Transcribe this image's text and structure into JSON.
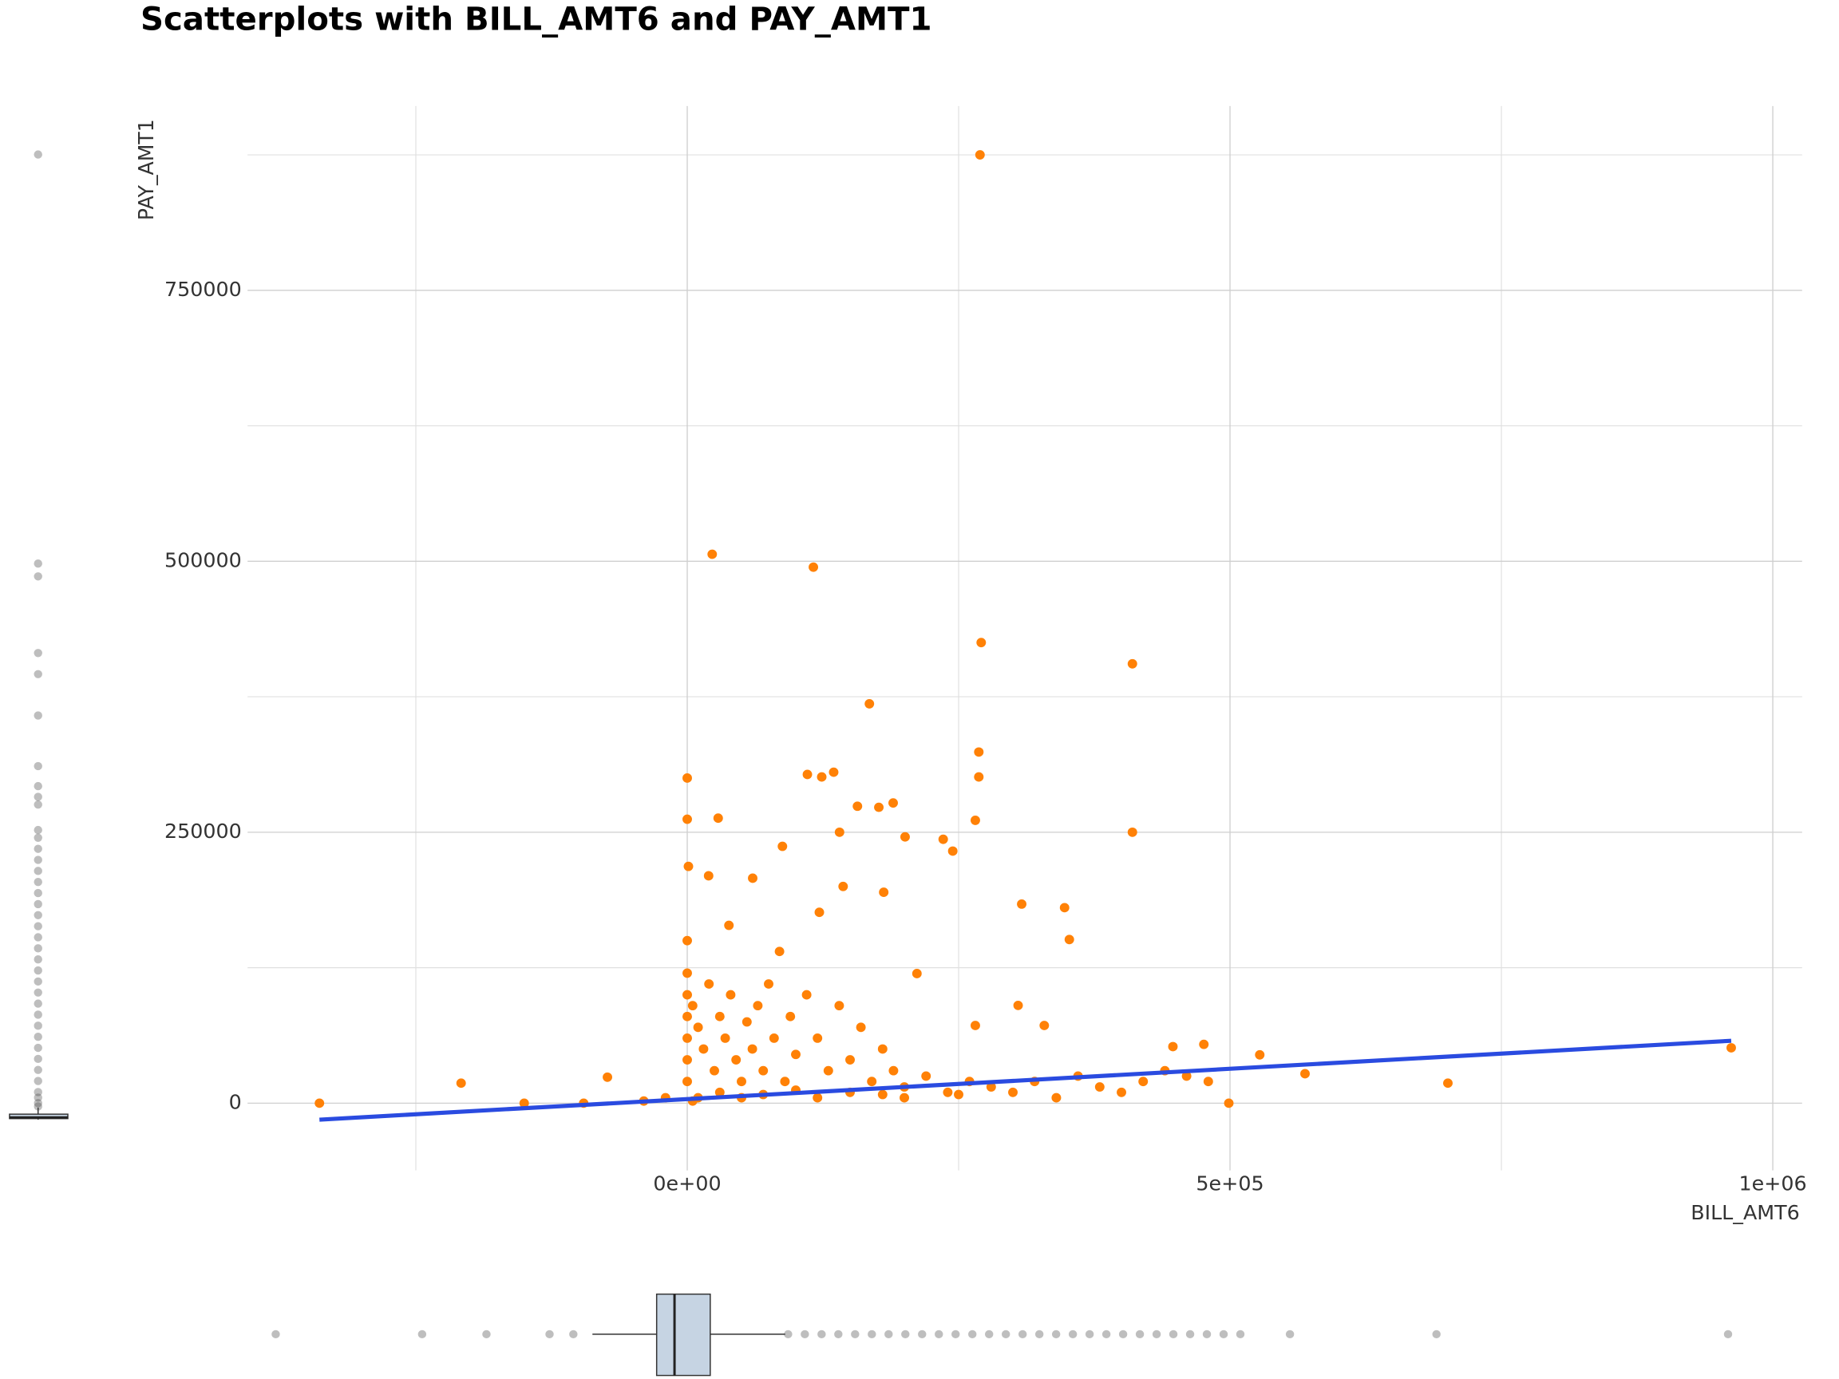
{
  "chart_data": {
    "type": "scatter",
    "title": "Scatterplots with BILL_AMT6 and PAY_AMT1",
    "x_label": "BILL_AMT6",
    "y_label": "PAY_AMT1",
    "color": "#ff8106",
    "grid": true,
    "xlim": [
      -405000,
      1027000
    ],
    "ylim": [
      -62000,
      920000
    ],
    "xticks": [
      {
        "value": 0,
        "label": "0e+00"
      },
      {
        "value": 500000,
        "label": "5e+05"
      },
      {
        "value": 1000000,
        "label": "1e+06"
      }
    ],
    "yticks": [
      0,
      250000,
      500000,
      750000
    ],
    "x_minor_grid": [
      -250000,
      250000,
      750000
    ],
    "y_minor_grid": [
      125000,
      375000,
      625000,
      875000
    ],
    "x": [
      -338800,
      -208300,
      -150200,
      -95400,
      -73500,
      269700,
      23000,
      116200,
      270800,
      410100,
      167800,
      0,
      110700,
      134900,
      123900,
      268600,
      268600,
      410100,
      265400,
      0,
      28500,
      156800,
      176500,
      189700,
      308100,
      347600,
      352000,
      87700,
      60300,
      211600,
      304800,
      328900,
      700700,
      961700,
      569100,
      527400,
      498900,
      475900,
      447400,
      265400,
      140300,
      200700,
      235800,
      244600,
      1100,
      19700,
      181000,
      143600,
      121700,
      38400,
      0,
      0,
      0,
      0,
      0,
      0,
      0,
      5000,
      10000,
      15000,
      20000,
      25000,
      30000,
      35000,
      40000,
      45000,
      50000,
      55000,
      60000,
      65000,
      70000,
      75000,
      80000,
      85000,
      90000,
      95000,
      100000,
      110000,
      120000,
      130000,
      140000,
      150000,
      160000,
      170000,
      180000,
      190000,
      200000,
      220000,
      240000,
      260000,
      280000,
      300000,
      320000,
      340000,
      360000,
      380000,
      400000,
      420000,
      440000,
      460000,
      480000,
      10000,
      30000,
      50000,
      70000,
      100000,
      150000,
      200000,
      250000,
      -20000,
      -40000,
      5000,
      120000,
      180000
    ],
    "y": [
      0,
      18500,
      0,
      0,
      24000,
      875000,
      506500,
      494600,
      425000,
      405400,
      368500,
      300000,
      303300,
      305400,
      301000,
      324000,
      301000,
      250000,
      261000,
      262000,
      263000,
      274000,
      273000,
      277000,
      183700,
      180400,
      151000,
      237000,
      207600,
      119600,
      90200,
      71700,
      18500,
      51100,
      27200,
      44600,
      0,
      54300,
      52200,
      71700,
      250000,
      245700,
      243500,
      232600,
      218500,
      209800,
      194600,
      200000,
      176100,
      164100,
      150000,
      120000,
      100000,
      80000,
      60000,
      40000,
      20000,
      90000,
      70000,
      50000,
      110000,
      30000,
      80000,
      60000,
      100000,
      40000,
      20000,
      75000,
      50000,
      90000,
      30000,
      110000,
      60000,
      140000,
      20000,
      80000,
      45000,
      100000,
      60000,
      30000,
      90000,
      40000,
      70000,
      20000,
      50000,
      30000,
      15000,
      25000,
      10000,
      20000,
      15000,
      10000,
      20000,
      5000,
      25000,
      15000,
      10000,
      20000,
      30000,
      25000,
      20000,
      5000,
      10000,
      5000,
      8000,
      12000,
      10000,
      5000,
      8000,
      5000,
      2000,
      2000,
      5000,
      8000
    ],
    "trend": {
      "color": "#2a4be0",
      "x": [
        -338800,
        961700
      ],
      "y": [
        -15200,
        57600
      ]
    },
    "x_box": {
      "fill": "#c6d4e3",
      "xlim": [
        -364000,
        1028000
      ],
      "q1": 2300,
      "median": 18300,
      "q3": 50300,
      "whisker_low": -55200,
      "whisker_high": 117400,
      "outliers": [
        -338800,
        -207700,
        -150100,
        -93600,
        -72300,
        120000,
        135000,
        150000,
        165000,
        180000,
        195000,
        210000,
        225000,
        240000,
        255000,
        270000,
        285000,
        300000,
        315000,
        330000,
        345000,
        360000,
        375000,
        390000,
        405000,
        420000,
        435000,
        450000,
        465000,
        480000,
        495000,
        510000,
        525000,
        569400,
        700600,
        961700
      ]
    },
    "y_box": {
      "fill": "#c6d4e3",
      "ylim": [
        -3200,
        916800
      ],
      "q1": 1000,
      "median": 2100,
      "q3": 5000,
      "whisker_low": 0,
      "whisker_high": 11000,
      "outliers": [
        873000,
        503000,
        491400,
        422100,
        403000,
        365600,
        319800,
        301700,
        292000,
        285000,
        262000,
        255000,
        245000,
        235000,
        225000,
        215000,
        205000,
        195000,
        185000,
        175000,
        165000,
        155000,
        145000,
        135000,
        125000,
        115000,
        105000,
        95000,
        85000,
        75000,
        65000,
        55000,
        45000,
        35000,
        25000,
        20000,
        15000,
        12000
      ]
    }
  }
}
